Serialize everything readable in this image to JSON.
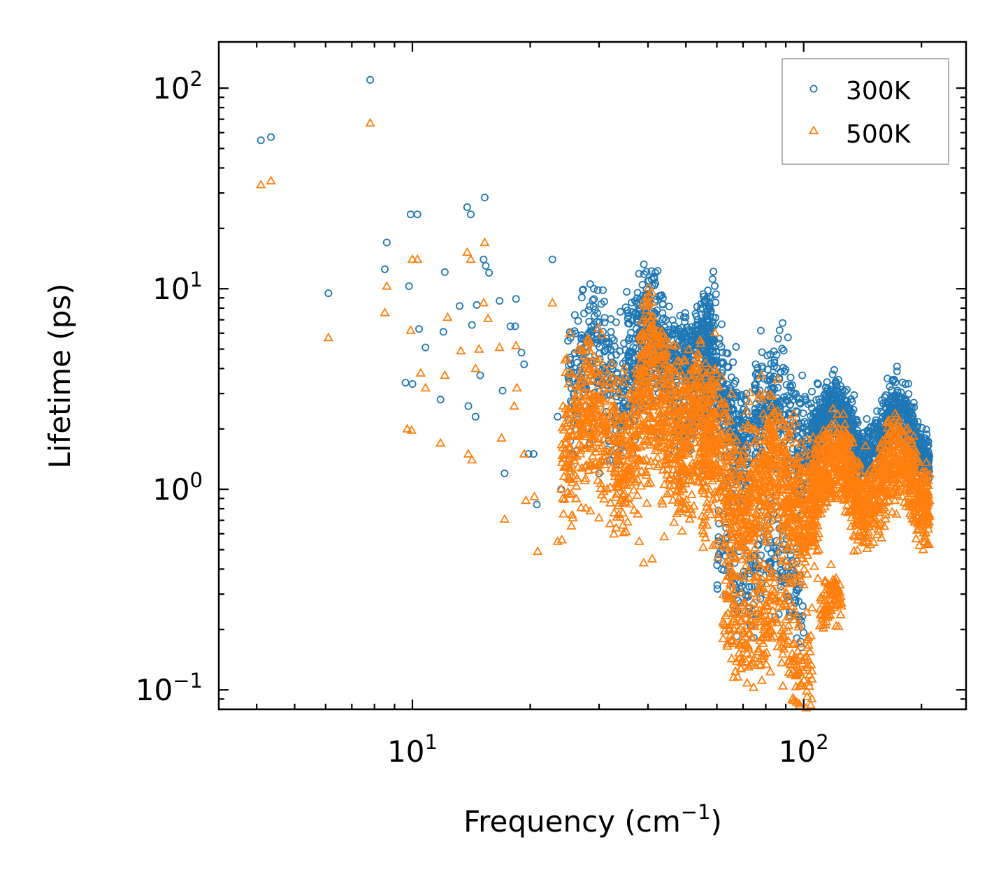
{
  "chart_data": {
    "type": "scatter",
    "title": "",
    "xlabel": "Frequency (cm",
    "xlabel_sup": "−1",
    "xlabel_suffix": ")",
    "ylabel": "Lifetime (ps)",
    "xscale": "log",
    "yscale": "log",
    "xlim": [
      3.2,
      260
    ],
    "ylim": [
      0.08,
      170
    ],
    "legend_position": "top-right",
    "x_ticks": [
      {
        "base": "10",
        "exp": "1",
        "value": 10
      },
      {
        "base": "10",
        "exp": "2",
        "value": 100
      }
    ],
    "y_ticks": [
      {
        "base": "10",
        "exp": "2",
        "value": 100
      },
      {
        "base": "10",
        "exp": "1",
        "value": 10
      },
      {
        "base": "10",
        "exp": "0",
        "value": 1
      },
      {
        "base": "10",
        "exp": "−1",
        "value": 0.1
      }
    ],
    "series": [
      {
        "name": "300K",
        "marker": "circle",
        "color": "#1f77b4",
        "points": [
          [
            4.1,
            55
          ],
          [
            4.35,
            57
          ],
          [
            7.8,
            110
          ],
          [
            6.1,
            9.5
          ],
          [
            8.5,
            12.5
          ],
          [
            8.6,
            17
          ],
          [
            9.8,
            10.3
          ],
          [
            9.9,
            23.5
          ],
          [
            10.3,
            23.5
          ],
          [
            10.4,
            6.3
          ],
          [
            10.8,
            5.1
          ],
          [
            9.6,
            3.4
          ],
          [
            10.0,
            3.35
          ],
          [
            11.8,
            2.8
          ],
          [
            12.0,
            6.1
          ],
          [
            12.1,
            12.1
          ],
          [
            13.2,
            8.2
          ],
          [
            13.8,
            25.5
          ],
          [
            14.1,
            23.5
          ],
          [
            15.3,
            28.5
          ],
          [
            15.4,
            13.0
          ],
          [
            15.7,
            12.0
          ],
          [
            15.2,
            14.0
          ],
          [
            14.6,
            8.3
          ],
          [
            14.9,
            3.7
          ],
          [
            14.5,
            2.3
          ],
          [
            13.9,
            2.6
          ],
          [
            14.2,
            6.6
          ],
          [
            16.7,
            8.7
          ],
          [
            17.0,
            3.1
          ],
          [
            17.2,
            1.2
          ],
          [
            17.8,
            6.5
          ],
          [
            18.4,
            8.9
          ],
          [
            18.3,
            6.5
          ],
          [
            19.0,
            4.8
          ],
          [
            19.3,
            4.2
          ],
          [
            19.8,
            1.5
          ],
          [
            20.4,
            1.5
          ],
          [
            20.8,
            0.84
          ],
          [
            22.8,
            14.0
          ],
          [
            23.5,
            2.3
          ],
          [
            24.0,
            1.0
          ],
          [
            25.0,
            5.5
          ],
          [
            25.5,
            3.8
          ],
          [
            26.0,
            7.4
          ],
          [
            27.5,
            4.3
          ],
          [
            28.0,
            2.0
          ],
          [
            28.4,
            1.7
          ],
          [
            29.2,
            7.3
          ],
          [
            30.0,
            1.2
          ],
          [
            31.0,
            6.8
          ]
        ],
        "bands": [
          {
            "x": [
              25,
              60
            ],
            "y_center": [
              3.5,
              3.8
            ],
            "spread_dex": 0.28,
            "n": 700
          },
          {
            "x": [
              35,
              48
            ],
            "y_center": [
              6.5,
              5.5
            ],
            "spread_dex": 0.18,
            "n": 180
          },
          {
            "x": [
              48,
              58
            ],
            "y_center": [
              7.0,
              5.0
            ],
            "spread_dex": 0.15,
            "n": 160
          },
          {
            "x": [
              55,
              110
            ],
            "y_center": [
              2.4,
              2.0
            ],
            "spread_dex": 0.25,
            "n": 700
          },
          {
            "x": [
              60,
              100
            ],
            "y_center": [
              0.45,
              0.35
            ],
            "spread_dex": 0.22,
            "n": 200
          },
          {
            "x": [
              105,
              210
            ],
            "y_center": [
              2.0,
              1.9
            ],
            "spread_dex": 0.12,
            "n": 900
          }
        ]
      },
      {
        "name": "500K",
        "marker": "triangle",
        "color": "#ff7f0e",
        "points": [
          [
            4.1,
            33
          ],
          [
            4.35,
            34.5
          ],
          [
            7.8,
            67
          ],
          [
            6.1,
            5.7
          ],
          [
            8.5,
            7.6
          ],
          [
            8.6,
            10.3
          ],
          [
            9.7,
            2.0
          ],
          [
            9.95,
            1.97
          ],
          [
            9.9,
            6.2
          ],
          [
            10.0,
            14.0
          ],
          [
            10.3,
            14.0
          ],
          [
            10.5,
            3.8
          ],
          [
            10.8,
            3.2
          ],
          [
            11.8,
            1.7
          ],
          [
            12.1,
            3.7
          ],
          [
            12.3,
            7.2
          ],
          [
            13.3,
            4.9
          ],
          [
            13.8,
            15.2
          ],
          [
            13.9,
            1.5
          ],
          [
            14.1,
            14.0
          ],
          [
            14.2,
            1.4
          ],
          [
            14.5,
            4.0
          ],
          [
            14.8,
            5.0
          ],
          [
            15.2,
            8.5
          ],
          [
            15.3,
            17.0
          ],
          [
            15.6,
            7.1
          ],
          [
            16.7,
            5.1
          ],
          [
            16.9,
            1.8
          ],
          [
            17.2,
            0.71
          ],
          [
            18.2,
            2.6
          ],
          [
            18.4,
            5.2
          ],
          [
            18.5,
            3.2
          ],
          [
            19.3,
            1.5
          ],
          [
            19.5,
            0.88
          ],
          [
            20.5,
            0.92
          ],
          [
            20.9,
            0.49
          ],
          [
            22.8,
            8.5
          ],
          [
            23.5,
            0.55
          ],
          [
            24.1,
            0.56
          ],
          [
            24.8,
            4.5
          ],
          [
            25.5,
            0.95
          ],
          [
            26.2,
            0.9
          ],
          [
            27.0,
            0.81
          ],
          [
            28.5,
            0.78
          ],
          [
            30.0,
            0.72
          ],
          [
            38.0,
            0.55
          ],
          [
            39.0,
            0.43
          ],
          [
            41.0,
            0.45
          ],
          [
            44.0,
            0.58
          ]
        ],
        "bands": [
          {
            "x": [
              24,
              60
            ],
            "y_center": [
              2.0,
              1.8
            ],
            "spread_dex": 0.3,
            "n": 900
          },
          {
            "x": [
              38,
              55
            ],
            "y_center": [
              4.5,
              3.5
            ],
            "spread_dex": 0.18,
            "n": 200
          },
          {
            "x": [
              55,
              110
            ],
            "y_center": [
              1.2,
              0.9
            ],
            "spread_dex": 0.32,
            "n": 900
          },
          {
            "x": [
              62,
              105
            ],
            "y_center": [
              0.28,
              0.15
            ],
            "spread_dex": 0.25,
            "n": 300
          },
          {
            "x": [
              105,
              210
            ],
            "y_center": [
              1.1,
              1.1
            ],
            "spread_dex": 0.18,
            "n": 1000
          },
          {
            "x": [
              110,
              125
            ],
            "y_center": [
              0.25,
              0.22
            ],
            "spread_dex": 0.12,
            "n": 80
          }
        ]
      }
    ]
  }
}
